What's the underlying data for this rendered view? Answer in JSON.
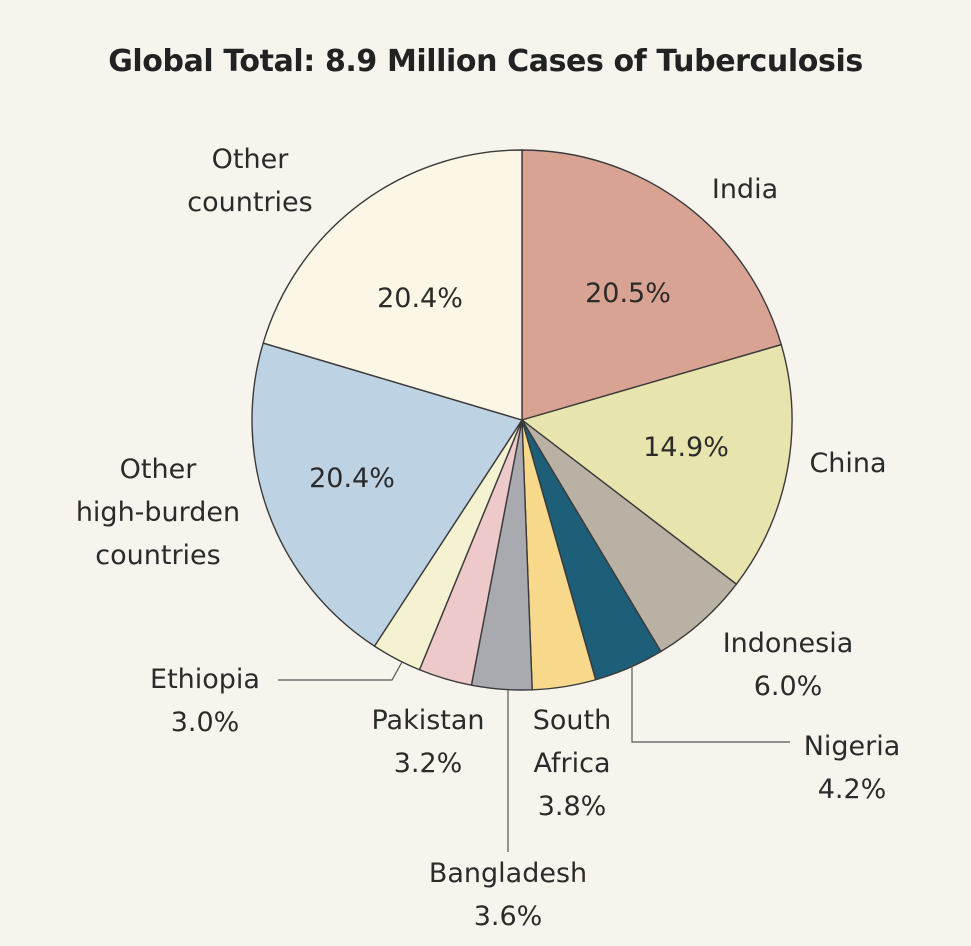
{
  "chart_data": {
    "type": "pie",
    "title": "Global Total: 8.9 Million Cases of Tuberculosis",
    "slices": [
      {
        "label_lines": [
          "India"
        ],
        "value": 20.5,
        "value_label": "20.5%",
        "color": "#d9a394"
      },
      {
        "label_lines": [
          "China"
        ],
        "value": 14.9,
        "value_label": "14.9%",
        "color": "#e8e4ad"
      },
      {
        "label_lines": [
          "Indonesia"
        ],
        "value": 6.0,
        "value_label": "6.0%",
        "color": "#b9b1a4"
      },
      {
        "label_lines": [
          "Nigeria"
        ],
        "value": 4.2,
        "value_label": "4.2%",
        "color": "#1d5e78"
      },
      {
        "label_lines": [
          "South",
          "Africa"
        ],
        "value": 3.8,
        "value_label": "3.8%",
        "color": "#f8d98c"
      },
      {
        "label_lines": [
          "Bangladesh"
        ],
        "value": 3.6,
        "value_label": "3.6%",
        "color": "#a9aab0"
      },
      {
        "label_lines": [
          "Pakistan"
        ],
        "value": 3.2,
        "value_label": "3.2%",
        "color": "#edc9c9"
      },
      {
        "label_lines": [
          "Ethiopia"
        ],
        "value": 3.0,
        "value_label": "3.0%",
        "color": "#f5f2d2"
      },
      {
        "label_lines": [
          "Other",
          "high-burden",
          "countries"
        ],
        "value": 20.4,
        "value_label": "20.4%",
        "color": "#bdd2e3"
      },
      {
        "label_lines": [
          "Other",
          "countries"
        ],
        "value": 20.4,
        "value_label": "20.4%",
        "color": "#fcf6e6"
      }
    ]
  }
}
